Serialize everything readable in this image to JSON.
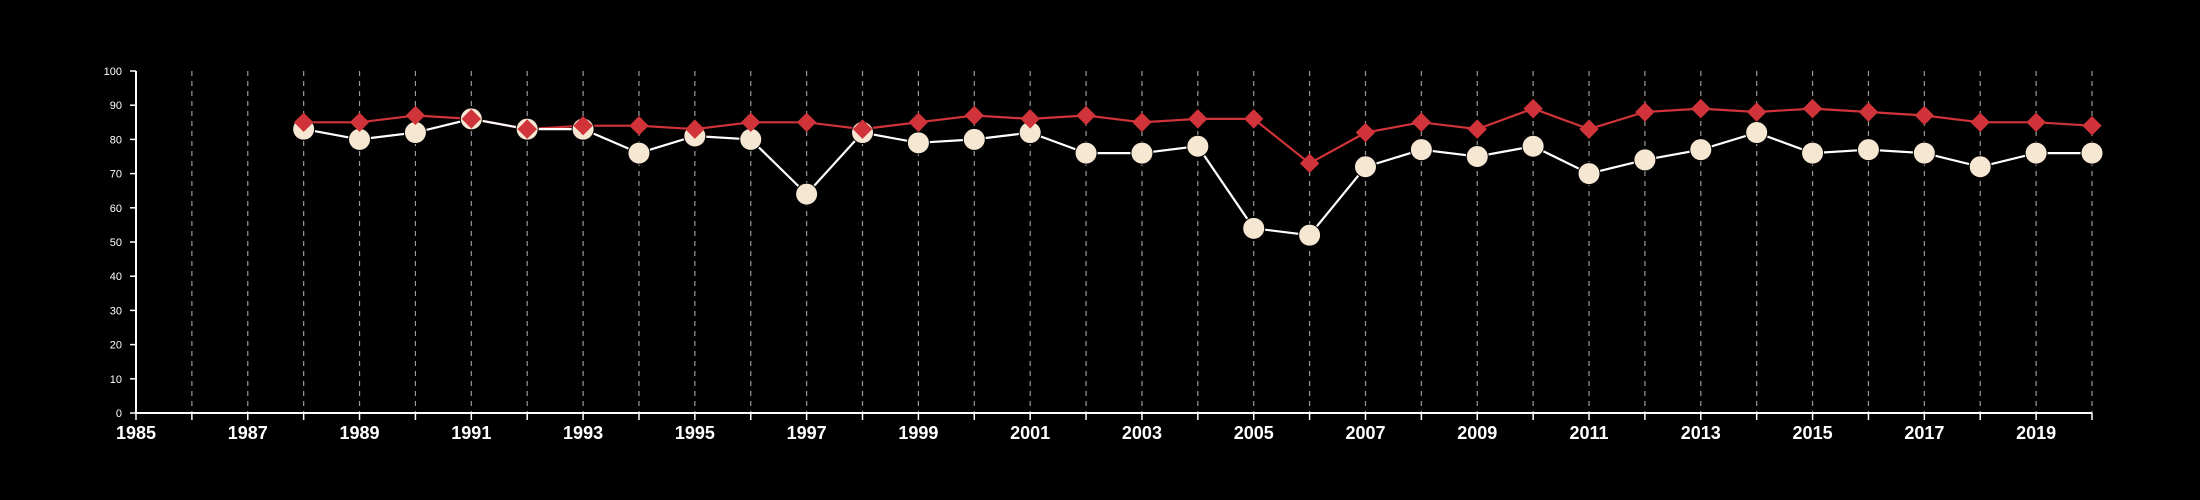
{
  "chart_data": {
    "type": "line",
    "title": "",
    "xlabel": "",
    "ylabel": "",
    "xlim": [
      1985,
      2020
    ],
    "ylim": [
      0,
      100
    ],
    "grid": "vertical dashed lines at each year",
    "legend": "none",
    "x_ticks": [
      1985,
      1987,
      1989,
      1991,
      1993,
      1995,
      1997,
      1999,
      2001,
      2003,
      2005,
      2007,
      2009,
      2011,
      2013,
      2015,
      2017,
      2019
    ],
    "y_ticks": [
      0,
      10,
      20,
      30,
      40,
      50,
      60,
      70,
      80,
      90,
      100
    ],
    "x": [
      1988,
      1989,
      1990,
      1991,
      1992,
      1993,
      1994,
      1995,
      1996,
      1997,
      1998,
      1999,
      2000,
      2001,
      2002,
      2003,
      2004,
      2005,
      2006,
      2007,
      2008,
      2009,
      2010,
      2011,
      2012,
      2013,
      2014,
      2015,
      2016,
      2017,
      2018,
      2019,
      2020
    ],
    "series": [
      {
        "marker": "diamond",
        "color": "#d0343a",
        "values": [
          85,
          85,
          87,
          86,
          83,
          84,
          84,
          83,
          85,
          85,
          83,
          85,
          87,
          86,
          87,
          85,
          86,
          86,
          73,
          82,
          85,
          83,
          89,
          83,
          88,
          89,
          88,
          89,
          88,
          87,
          85,
          85,
          84
        ]
      },
      {
        "marker": "circle",
        "color": "#f6e7d3",
        "line_color": "#ffffff",
        "values": [
          83,
          80,
          82,
          86,
          83,
          83,
          76,
          81,
          80,
          64,
          82,
          79,
          80,
          82,
          76,
          76,
          78,
          54,
          52,
          72,
          77,
          75,
          78,
          70,
          74,
          77,
          82,
          76,
          77,
          76,
          72,
          76,
          76
        ]
      }
    ]
  }
}
